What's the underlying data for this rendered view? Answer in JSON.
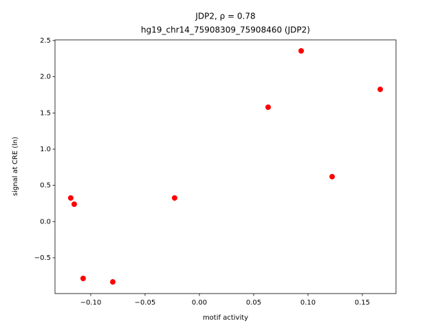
{
  "chart_data": {
    "type": "scatter",
    "title": "JDP2, ρ = 0.78",
    "subtitle": "hg19_chr14_75908309_75908460 (JDP2)",
    "x_label": "motif activity",
    "y_label": "signal at CRE (ln)",
    "series": [
      {
        "color": "#ff0000",
        "x": [
          -0.1184,
          -0.1152,
          -0.107,
          -0.0797,
          -0.0228,
          0.0633,
          0.0937,
          0.1222,
          0.1665
        ],
        "values": [
          0.326,
          0.24,
          -0.785,
          -0.833,
          0.326,
          1.579,
          2.357,
          0.62,
          1.826
        ]
      }
    ],
    "xlim": [
      -0.1329,
      0.181
    ],
    "ylim": [
      -0.994,
      2.509
    ],
    "xticks": [
      {
        "value": -0.1,
        "label": "−0.10"
      },
      {
        "value": -0.05,
        "label": "−0.05"
      },
      {
        "value": 0,
        "label": "0.00"
      },
      0.05,
      {
        "value": 0.1,
        "label": "0.10"
      },
      0.15
    ],
    "yticks": [
      {
        "value": -0.5,
        "label": "−0.5"
      },
      {
        "value": 0,
        "label": "0.0"
      },
      0.5,
      {
        "value": 1,
        "label": "1.0"
      },
      1.5,
      {
        "value": 2,
        "label": "2.0"
      },
      2.5
    ]
  }
}
